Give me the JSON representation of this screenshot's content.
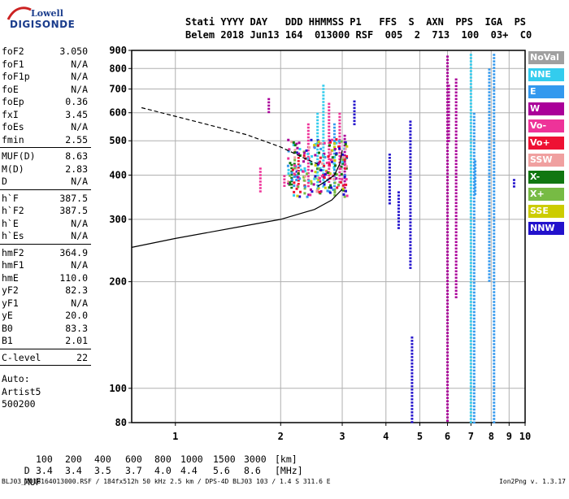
{
  "logo": {
    "line1": "Lowell",
    "line2": "DIGISONDE"
  },
  "header": {
    "line1": "Stati YYYY DAY   DDD HHMMSS P1   FFS  S  AXN  PPS  IGA  PS",
    "line2": "Belem 2018 Jun13 164  013000 RSF  005  2  713  100  03+  C0"
  },
  "params": {
    "group1": [
      {
        "name": "foF2",
        "value": "3.050"
      },
      {
        "name": "foF1",
        "value": "N/A"
      },
      {
        "name": "foF1p",
        "value": "N/A"
      },
      {
        "name": "foE",
        "value": "N/A"
      },
      {
        "name": "foEp",
        "value": "0.36"
      },
      {
        "name": "fxI",
        "value": "3.45"
      },
      {
        "name": "foEs",
        "value": "N/A"
      },
      {
        "name": "fmin",
        "value": "2.55"
      }
    ],
    "group2": [
      {
        "name": "MUF(D)",
        "value": "8.63"
      },
      {
        "name": "M(D)",
        "value": "2.83"
      },
      {
        "name": "D",
        "value": "N/A"
      }
    ],
    "group3": [
      {
        "name": "h`F",
        "value": "387.5"
      },
      {
        "name": "h`F2",
        "value": "387.5"
      },
      {
        "name": "h`E",
        "value": "N/A"
      },
      {
        "name": "h`Es",
        "value": "N/A"
      }
    ],
    "group4": [
      {
        "name": "hmF2",
        "value": "364.9"
      },
      {
        "name": "hmF1",
        "value": "N/A"
      },
      {
        "name": "hmE",
        "value": "110.0"
      },
      {
        "name": "yF2",
        "value": "82.3"
      },
      {
        "name": "yF1",
        "value": "N/A"
      },
      {
        "name": "yE",
        "value": "20.0"
      },
      {
        "name": "B0",
        "value": "83.3"
      },
      {
        "name": "B1",
        "value": "2.01"
      }
    ],
    "group5": [
      {
        "name": "C-level",
        "value": "22"
      }
    ],
    "auto": [
      "Auto:",
      "Artist5",
      "500200"
    ]
  },
  "legend": [
    {
      "label": "NoVal",
      "color": "#a0a0a0"
    },
    {
      "label": "NNE",
      "color": "#33ccee"
    },
    {
      "label": "E",
      "color": "#3399ee"
    },
    {
      "label": "W",
      "color": "#aa0099"
    },
    {
      "label": "Vo-",
      "color": "#ee3399"
    },
    {
      "label": "Vo+",
      "color": "#ee1133"
    },
    {
      "label": "SSW",
      "color": "#f0a0a0"
    },
    {
      "label": "X-",
      "color": "#117711"
    },
    {
      "label": "X+",
      "color": "#77bb44"
    },
    {
      "label": "SSE",
      "color": "#cccc00"
    },
    {
      "label": "NNW",
      "color": "#2211cc"
    }
  ],
  "footer": {
    "d_label": "D",
    "d_values": [
      "100",
      "200",
      "400",
      "600",
      "800",
      "1000",
      "1500",
      "3000"
    ],
    "d_unit": "[km]",
    "muf_label": "MUF",
    "muf_values": [
      "3.4",
      "3.4",
      "3.5",
      "3.7",
      "4.0",
      "4.4",
      "5.6",
      "8.6"
    ],
    "muf_unit": "[MHz]",
    "note_left": "BLJ03_2018164013000.RSF / 184fx512h 50 kHz 2.5 km / DPS-4D BLJ03 103 / 1.4 S 311.6 E",
    "note_right": "Ion2Png v. 1.3.17"
  },
  "chart_data": {
    "type": "scatter",
    "title": "",
    "xlabel": "",
    "ylabel": "",
    "xlim": [
      0.75,
      10
    ],
    "ylim": [
      80,
      900
    ],
    "x_scale": "log",
    "y_scale": "log",
    "x_ticks": [
      1,
      2,
      3,
      4,
      5,
      6,
      7,
      8,
      9,
      10
    ],
    "y_ticks": [
      80,
      100,
      200,
      300,
      400,
      500,
      600,
      700,
      800,
      900
    ],
    "grid": true,
    "curves": [
      {
        "name": "profile",
        "style": "solid",
        "points": [
          [
            0.75,
            250
          ],
          [
            1,
            265
          ],
          [
            1.5,
            285
          ],
          [
            2,
            300
          ],
          [
            2.5,
            320
          ],
          [
            2.8,
            340
          ],
          [
            3.0,
            365
          ]
        ]
      },
      {
        "name": "trace",
        "style": "solid",
        "points": [
          [
            2.55,
            372
          ],
          [
            2.7,
            385
          ],
          [
            2.85,
            400
          ],
          [
            2.95,
            430
          ],
          [
            3.0,
            470
          ]
        ]
      },
      {
        "name": "extrapolated",
        "style": "dashed",
        "points": [
          [
            0.8,
            620
          ],
          [
            1.2,
            560
          ],
          [
            1.6,
            520
          ],
          [
            2.0,
            480
          ],
          [
            2.3,
            450
          ],
          [
            2.55,
            430
          ]
        ]
      }
    ],
    "echo_columns": [
      {
        "x": 1.75,
        "from": 360,
        "to": 420,
        "series": "Vo-"
      },
      {
        "x": 1.85,
        "from": 600,
        "to": 660,
        "series": "W"
      },
      {
        "x": 2.05,
        "from": 370,
        "to": 400,
        "series": "Vo-"
      },
      {
        "x": 2.15,
        "from": 370,
        "to": 430,
        "series": "X-"
      },
      {
        "x": 2.25,
        "from": 380,
        "to": 460,
        "series": "Vo+"
      },
      {
        "x": 2.4,
        "from": 370,
        "to": 560,
        "series": "Vo-"
      },
      {
        "x": 2.55,
        "from": 360,
        "to": 600,
        "series": "NNE"
      },
      {
        "x": 2.65,
        "from": 370,
        "to": 720,
        "series": "NNE"
      },
      {
        "x": 2.75,
        "from": 380,
        "to": 640,
        "series": "Vo-"
      },
      {
        "x": 2.85,
        "from": 360,
        "to": 560,
        "series": "E"
      },
      {
        "x": 2.95,
        "from": 380,
        "to": 600,
        "series": "Vo-"
      },
      {
        "x": 3.05,
        "from": 360,
        "to": 520,
        "series": "W"
      },
      {
        "x": 3.25,
        "from": 560,
        "to": 650,
        "series": "NNW"
      },
      {
        "x": 4.1,
        "from": 330,
        "to": 460,
        "series": "NNW"
      },
      {
        "x": 4.35,
        "from": 280,
        "to": 360,
        "series": "NNW"
      },
      {
        "x": 4.7,
        "from": 220,
        "to": 570,
        "series": "NNW"
      },
      {
        "x": 4.75,
        "from": 80,
        "to": 140,
        "series": "NNW"
      },
      {
        "x": 6.0,
        "from": 80,
        "to": 870,
        "series": "W"
      },
      {
        "x": 6.05,
        "from": 500,
        "to": 720,
        "series": "W"
      },
      {
        "x": 6.35,
        "from": 180,
        "to": 750,
        "series": "W"
      },
      {
        "x": 7.0,
        "from": 80,
        "to": 880,
        "series": "NNE"
      },
      {
        "x": 7.15,
        "from": 80,
        "to": 600,
        "series": "E"
      },
      {
        "x": 7.2,
        "from": 350,
        "to": 440,
        "series": "E"
      },
      {
        "x": 7.9,
        "from": 200,
        "to": 800,
        "series": "E"
      },
      {
        "x": 8.15,
        "from": 80,
        "to": 880,
        "series": "E"
      },
      {
        "x": 9.3,
        "from": 370,
        "to": 390,
        "series": "NNW"
      }
    ]
  }
}
